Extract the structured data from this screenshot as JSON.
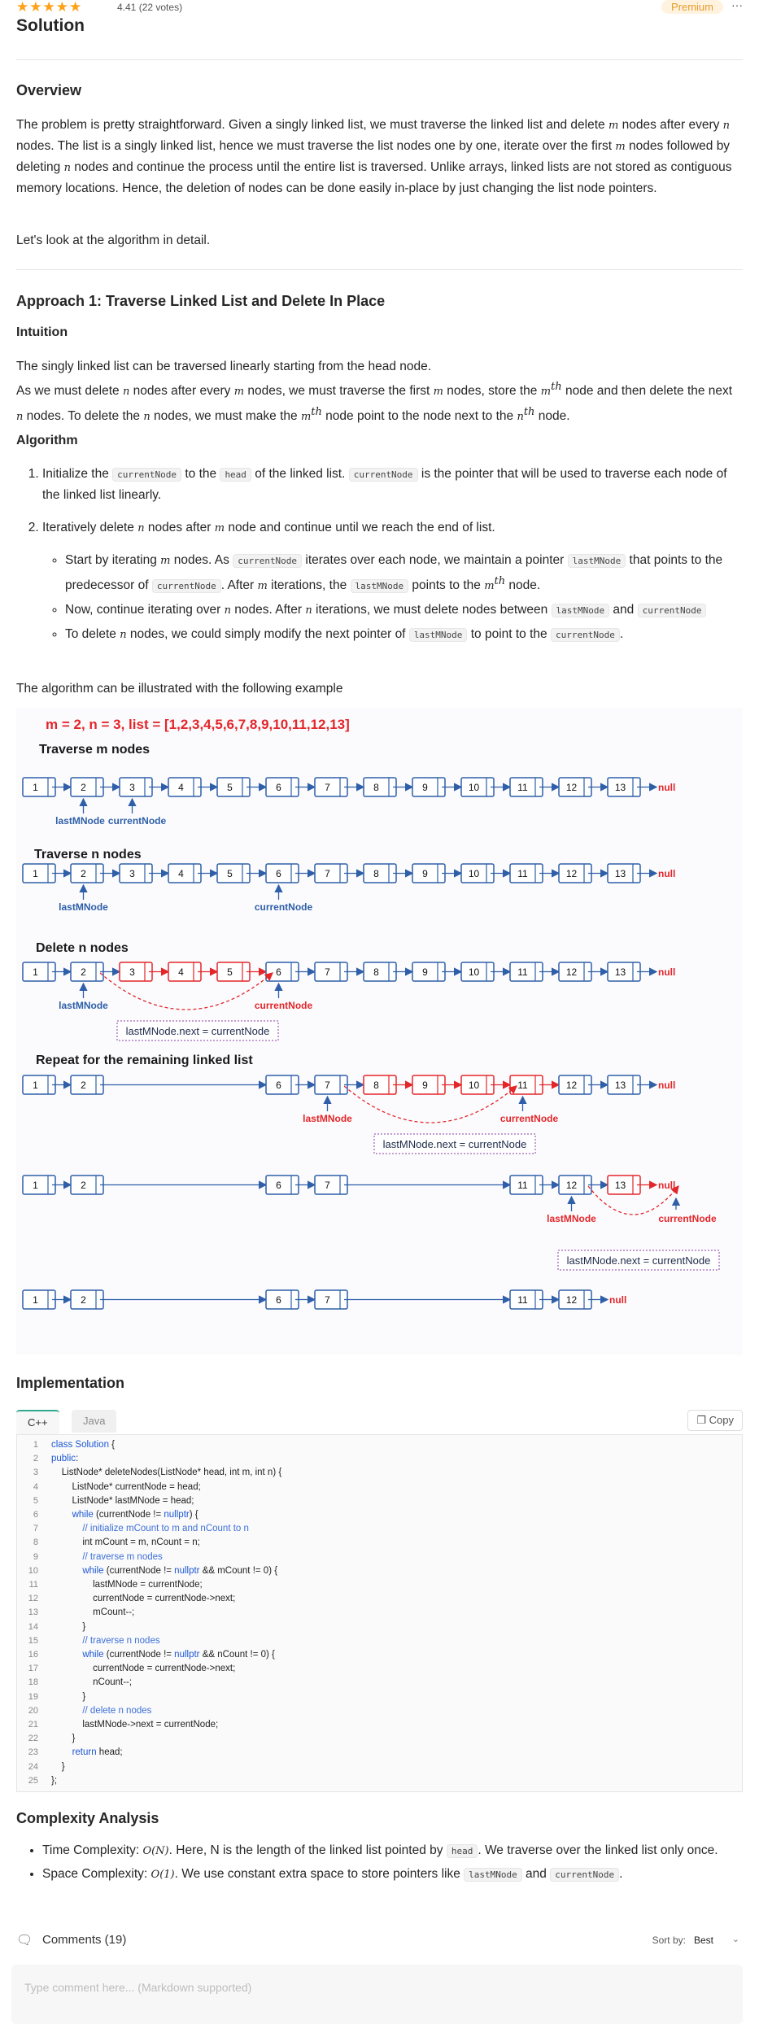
{
  "header": {
    "stars": "★★★★★",
    "rating": "4.41",
    "votes": "(22 votes)",
    "premium": "Premium",
    "more": "···"
  },
  "title": "Solution",
  "overview": {
    "heading": "Overview",
    "p1_a": "The problem is pretty straightforward. Given a singly linked list, we must traverse the linked list and delete ",
    "p1_b": " nodes after every ",
    "p1_c": " nodes. The list is a singly linked list, hence we must traverse the list nodes one by one, iterate over the first ",
    "p1_d": " nodes followed by deleting ",
    "p1_e": " nodes and continue the process until the entire list is traversed. Unlike arrays, linked lists are not stored as contiguous memory locations. Hence, the deletion of nodes can be done easily in-place by just changing the list node pointers.",
    "p2": "Let's look at the algorithm in detail.",
    "var_m": "m",
    "var_n": "n"
  },
  "approach": {
    "heading": "Approach 1: Traverse Linked List and Delete In Place",
    "intuition_heading": "Intuition",
    "intuition_l1": "The singly linked list can be traversed linearly starting from the head node.",
    "i2_a": "As we must delete ",
    "i2_b": " nodes after every ",
    "i2_c": " nodes, we must traverse the first ",
    "i2_d": " nodes, store the ",
    "i2_e": " node and then delete the next ",
    "i2_f": " nodes. To delete the ",
    "i2_g": " nodes, we must make the ",
    "i2_h": " node point to the node next to the ",
    "i2_i": " node.",
    "th": "th",
    "algorithm_heading": "Algorithm",
    "s1_a": "Initialize the ",
    "s1_code1": "currentNode",
    "s1_b": " to the ",
    "s1_code2": "head",
    "s1_c": " of the linked list. ",
    "s1_code3": "currentNode",
    "s1_d": " is the pointer that will be used to traverse each node of the linked list linearly.",
    "s2_a": "Iteratively delete ",
    "s2_b": " nodes after ",
    "s2_c": " node and continue until we reach the end of list.",
    "b1_a": "Start by iterating ",
    "b1_b": " nodes. As ",
    "b1_code1": "currentNode",
    "b1_c": " iterates over each node, we maintain a pointer ",
    "b1_code2": "lastMNode",
    "b1_d": " that points to the predecessor of ",
    "b1_code3": "currentNode",
    "b1_e": ". After ",
    "b1_f": " iterations, the ",
    "b1_code4": "lastMNode",
    "b1_g": " points to the ",
    "b1_h": " node.",
    "b2_a": "Now, continue iterating over ",
    "b2_b": " nodes. After ",
    "b2_c": " iterations, we must delete nodes between ",
    "b2_code1": "lastMNode",
    "b2_d": " and ",
    "b2_code2": "currentNode",
    "b3_a": "To delete ",
    "b3_b": " nodes, we could simply modify the next pointer of ",
    "b3_code1": "lastMNode",
    "b3_c": " to point to the ",
    "b3_code2": "currentNode",
    "b3_d": ".",
    "illustrate": "The algorithm can be illustrated with the following example"
  },
  "figure": {
    "caption": "m = 2, n = 3, list = [1,2,3,4,5,6,7,8,9,10,11,12,13]",
    "section1": "Traverse m nodes",
    "section2": "Traverse n nodes",
    "section3": "Delete n nodes",
    "section4": "Repeat for the remaining linked list",
    "last_label": "lastMNode",
    "current_label": "currentNode",
    "assign": "lastMNode.next = currentNode",
    "null": "null",
    "nodes": [
      "1",
      "2",
      "3",
      "4",
      "5",
      "6",
      "7",
      "8",
      "9",
      "10",
      "11",
      "12",
      "13"
    ],
    "colors": {
      "red": "#e3262a",
      "blue": "#2e5fa8",
      "dark": "#1e2a4a"
    }
  },
  "implementation": {
    "heading": "Implementation",
    "tab_cpp": "C++",
    "tab_java": "Java",
    "copy": "Copy",
    "lines": [
      "class Solution {",
      "public:",
      "    ListNode* deleteNodes(ListNode* head, int m, int n) {",
      "        ListNode* currentNode = head;",
      "        ListNode* lastMNode = head;",
      "        while (currentNode != nullptr) {",
      "            // initialize mCount to m and nCount to n",
      "            int mCount = m, nCount = n;",
      "            // traverse m nodes",
      "            while (currentNode != nullptr && mCount != 0) {",
      "                lastMNode = currentNode;",
      "                currentNode = currentNode->next;",
      "                mCount--;",
      "            }",
      "            // traverse n nodes",
      "            while (currentNode != nullptr && nCount != 0) {",
      "                currentNode = currentNode->next;",
      "                nCount--;",
      "            }",
      "            // delete n nodes",
      "            lastMNode->next = currentNode;",
      "        }",
      "        return head;",
      "    }",
      "};"
    ]
  },
  "complexity": {
    "heading": "Complexity Analysis",
    "t_a": "Time Complexity: ",
    "t_math": "O(N)",
    "t_b": ". Here, N is the length of the linked list pointed by ",
    "t_code": "head",
    "t_c": ". We traverse over the linked list only once.",
    "s_a": "Space Complexity: ",
    "s_math": "O(1)",
    "s_b": ". We use constant extra space to store pointers like ",
    "s_code1": "lastMNode",
    "s_c": " and ",
    "s_code2": "currentNode",
    "s_d": "."
  },
  "comments": {
    "label": "Comments (19)",
    "sort_label": "Sort by:",
    "sort_value": "Best",
    "placeholder": "Type comment here... (Markdown supported)"
  }
}
